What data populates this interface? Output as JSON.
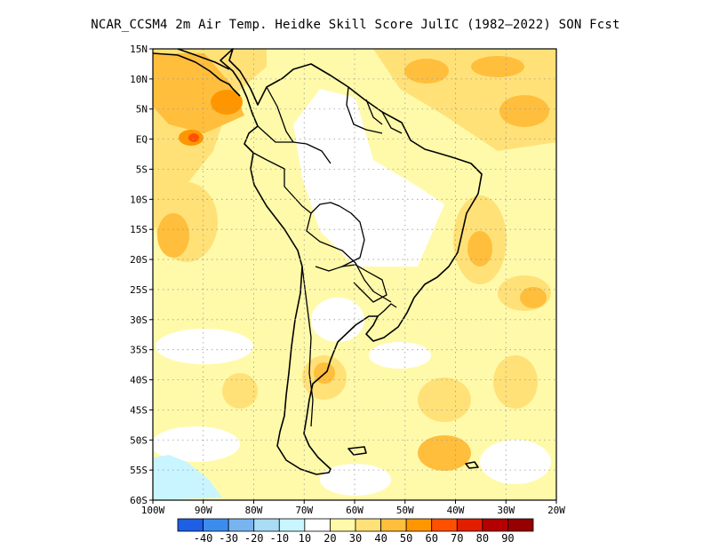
{
  "title": "NCAR_CCSM4  2m Air Temp. Heidke Skill Score JulIC (1982–2022) SON Fcst",
  "map": {
    "lat_labels": [
      "15N",
      "10N",
      "5N",
      "EQ",
      "5S",
      "10S",
      "15S",
      "20S",
      "25S",
      "30S",
      "35S",
      "40S",
      "45S",
      "50S",
      "55S",
      "60S"
    ],
    "lon_labels": [
      "100W",
      "90W",
      "80W",
      "70W",
      "60W",
      "50W",
      "40W",
      "30W",
      "20W"
    ],
    "grid": "dotted"
  },
  "colorbar": {
    "labels": [
      "-40",
      "-30",
      "-20",
      "-10",
      "10",
      "20",
      "30",
      "40",
      "50",
      "60",
      "70",
      "80",
      "90"
    ],
    "colors": [
      "#1f5fe6",
      "#3c8cf0",
      "#78b4f0",
      "#aadcf5",
      "#c8f5ff",
      "#ffffff",
      "#fffaaa",
      "#ffe178",
      "#ffbe3c",
      "#ff9600",
      "#ff5000",
      "#e11e00",
      "#b40000",
      "#960000"
    ]
  }
}
